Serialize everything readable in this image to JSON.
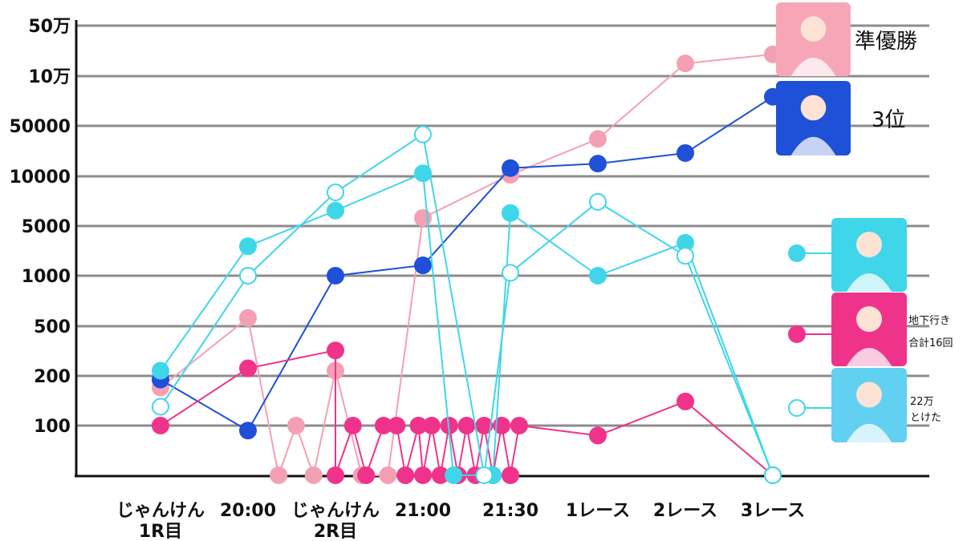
{
  "chart_data": {
    "type": "line",
    "scale": "log-like (custom spaced ticks)",
    "grid": true,
    "y_ticks": [
      {
        "label": "100",
        "value": 100
      },
      {
        "label": "200",
        "value": 200
      },
      {
        "label": "500",
        "value": 500
      },
      {
        "label": "1000",
        "value": 1000
      },
      {
        "label": "5000",
        "value": 5000
      },
      {
        "label": "10000",
        "value": 10000
      },
      {
        "label": "50000",
        "value": 50000
      },
      {
        "label": "10万",
        "value": 100000
      },
      {
        "label": "50万",
        "value": 500000
      }
    ],
    "x_labels": [
      {
        "label": "じゃんけん",
        "x": 1.0
      },
      {
        "label": "1R目",
        "x": 1.0
      },
      {
        "label": "20:00",
        "x": 2.0
      },
      {
        "label": "じゃんけん",
        "x": 3.0
      },
      {
        "label": "2R目",
        "x": 3.0
      },
      {
        "label": "21:00",
        "x": 4.0
      },
      {
        "label": "21:30",
        "x": 5.0
      },
      {
        "label": "1レース",
        "x": 6.0
      },
      {
        "label": "2レース",
        "x": 7.0
      },
      {
        "label": "3レース",
        "x": 8.0
      }
    ],
    "series": [
      {
        "color": "#f4a0b4",
        "marker": "filled",
        "points": [
          [
            1.0,
            170
          ],
          [
            2.0,
            560
          ],
          [
            2.35,
            0
          ],
          [
            2.55,
            100
          ],
          [
            2.75,
            0
          ],
          [
            3.0,
            220
          ],
          [
            3.3,
            0
          ],
          [
            3.6,
            0
          ],
          [
            4.0,
            5600
          ],
          [
            5.0,
            10500
          ],
          [
            6.0,
            33000
          ],
          [
            7.0,
            150000
          ],
          [
            8.0,
            200000
          ]
        ]
      },
      {
        "color": "#1e50d8",
        "marker": "filled",
        "points": [
          [
            1.0,
            190
          ],
          [
            2.0,
            90
          ],
          [
            3.0,
            1000
          ],
          [
            4.0,
            1400
          ],
          [
            5.0,
            13000
          ],
          [
            6.0,
            15000
          ],
          [
            7.0,
            21000
          ],
          [
            8.0,
            75000
          ]
        ]
      },
      {
        "color": "#f0338a",
        "marker": "filled",
        "points": [
          [
            1.0,
            100
          ],
          [
            2.0,
            230
          ],
          [
            3.0,
            320
          ],
          [
            3.0,
            0
          ],
          [
            3.2,
            100
          ],
          [
            3.35,
            0
          ],
          [
            3.55,
            100
          ],
          [
            3.7,
            100
          ],
          [
            3.8,
            0
          ],
          [
            3.95,
            100
          ],
          [
            4.0,
            0
          ],
          [
            4.1,
            100
          ],
          [
            4.2,
            0
          ],
          [
            4.3,
            100
          ],
          [
            4.4,
            0
          ],
          [
            4.5,
            100
          ],
          [
            4.6,
            0
          ],
          [
            4.7,
            100
          ],
          [
            4.8,
            0
          ],
          [
            4.9,
            100
          ],
          [
            5.0,
            0
          ],
          [
            5.1,
            100
          ],
          [
            6.0,
            80
          ],
          [
            7.0,
            140
          ],
          [
            8.0,
            0
          ]
        ]
      },
      {
        "color": "#3fd6ea",
        "marker": "filled",
        "points": [
          [
            1.0,
            220
          ],
          [
            2.0,
            2600
          ],
          [
            3.0,
            6200
          ],
          [
            4.0,
            11000
          ],
          [
            4.35,
            0
          ],
          [
            4.8,
            0
          ],
          [
            5.0,
            6000
          ],
          [
            6.0,
            1000
          ],
          [
            7.0,
            2900
          ],
          [
            8.0,
            0
          ]
        ]
      },
      {
        "color": "#3fd6ea",
        "marker": "hollow",
        "points": [
          [
            1.0,
            130
          ],
          [
            2.0,
            1000
          ],
          [
            3.0,
            8000
          ],
          [
            4.0,
            38000
          ],
          [
            4.7,
            0
          ],
          [
            5.0,
            1100
          ],
          [
            6.0,
            7000
          ],
          [
            7.0,
            1900
          ],
          [
            8.0,
            0
          ]
        ]
      }
    ],
    "annotations": [
      {
        "text": "準優勝",
        "color": "#f4a0b4"
      },
      {
        "text": "3位",
        "color": "#1e50d8"
      },
      {
        "text": "地下行き",
        "color": "#f0338a"
      },
      {
        "text": "合計16回",
        "color": "#f0338a"
      },
      {
        "text": "22万",
        "color": "#3fd6ea"
      },
      {
        "text": "とけた",
        "color": "#3fd6ea"
      }
    ],
    "portrait_cards": [
      {
        "name": "portrait-card-pink",
        "bg": "#f7a6b8"
      },
      {
        "name": "portrait-card-blue",
        "bg": "#1e50d8"
      },
      {
        "name": "portrait-card-cyan",
        "bg": "#3fd6ea"
      },
      {
        "name": "portrait-card-magenta",
        "bg": "#f0338a"
      },
      {
        "name": "portrait-card-lightblue",
        "bg": "#62d0f0"
      }
    ]
  }
}
